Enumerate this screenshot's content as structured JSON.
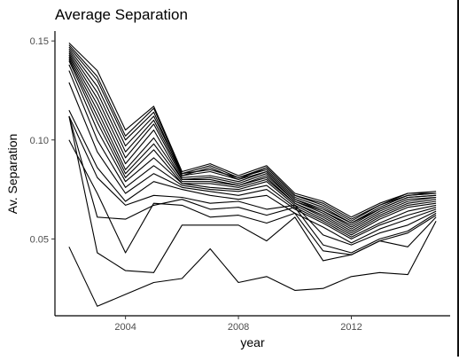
{
  "chart_data": {
    "type": "line",
    "title": "Average Separation",
    "xlabel": "year",
    "ylabel": "Av. Separation",
    "xlim": [
      2001.5,
      2015.5
    ],
    "ylim": [
      0.0112,
      0.155
    ],
    "x_ticks": [
      2004,
      2008,
      2012
    ],
    "y_ticks": [
      0.05,
      0.1,
      0.15
    ],
    "x_tick_labels": [
      "2004",
      "2008",
      "2012"
    ],
    "y_tick_labels": [
      "0.05",
      "0.10",
      "0.15"
    ],
    "grid": false,
    "legend": "none",
    "line_color": "#000000",
    "x": [
      2002,
      2003,
      2004,
      2005,
      2006,
      2007,
      2008,
      2009,
      2010,
      2011,
      2012,
      2013,
      2014,
      2015
    ],
    "series": [
      {
        "values": [
          0.149,
          0.135,
          0.105,
          0.117,
          0.084,
          0.088,
          0.082,
          0.087,
          0.073,
          0.069,
          0.061,
          0.068,
          0.073,
          0.074
        ]
      },
      {
        "values": [
          0.148,
          0.132,
          0.102,
          0.116,
          0.083,
          0.087,
          0.081,
          0.086,
          0.072,
          0.068,
          0.06,
          0.067,
          0.073,
          0.073
        ]
      },
      {
        "values": [
          0.147,
          0.13,
          0.1,
          0.114,
          0.082,
          0.086,
          0.08,
          0.086,
          0.072,
          0.067,
          0.059,
          0.067,
          0.072,
          0.073
        ]
      },
      {
        "values": [
          0.146,
          0.127,
          0.097,
          0.112,
          0.083,
          0.085,
          0.081,
          0.085,
          0.071,
          0.066,
          0.058,
          0.066,
          0.072,
          0.073
        ]
      },
      {
        "values": [
          0.145,
          0.124,
          0.094,
          0.11,
          0.082,
          0.084,
          0.08,
          0.084,
          0.07,
          0.065,
          0.058,
          0.065,
          0.071,
          0.072
        ]
      },
      {
        "values": [
          0.144,
          0.121,
          0.091,
          0.108,
          0.081,
          0.082,
          0.079,
          0.084,
          0.07,
          0.064,
          0.057,
          0.065,
          0.071,
          0.072
        ]
      },
      {
        "values": [
          0.143,
          0.118,
          0.088,
          0.105,
          0.08,
          0.081,
          0.078,
          0.083,
          0.069,
          0.064,
          0.056,
          0.064,
          0.07,
          0.071
        ]
      },
      {
        "values": [
          0.142,
          0.115,
          0.085,
          0.101,
          0.08,
          0.08,
          0.077,
          0.082,
          0.069,
          0.063,
          0.055,
          0.063,
          0.069,
          0.071
        ]
      },
      {
        "values": [
          0.141,
          0.112,
          0.083,
          0.098,
          0.079,
          0.079,
          0.077,
          0.081,
          0.068,
          0.062,
          0.054,
          0.062,
          0.068,
          0.07
        ]
      },
      {
        "values": [
          0.14,
          0.109,
          0.081,
          0.095,
          0.078,
          0.078,
          0.076,
          0.08,
          0.068,
          0.061,
          0.053,
          0.061,
          0.067,
          0.069
        ]
      },
      {
        "values": [
          0.138,
          0.105,
          0.079,
          0.091,
          0.078,
          0.076,
          0.075,
          0.079,
          0.067,
          0.06,
          0.052,
          0.06,
          0.066,
          0.068
        ]
      },
      {
        "values": [
          0.135,
          0.1,
          0.076,
          0.087,
          0.077,
          0.075,
          0.074,
          0.077,
          0.066,
          0.059,
          0.051,
          0.058,
          0.064,
          0.067
        ]
      },
      {
        "values": [
          0.129,
          0.094,
          0.073,
          0.083,
          0.076,
          0.074,
          0.072,
          0.075,
          0.065,
          0.058,
          0.05,
          0.057,
          0.062,
          0.066
        ]
      },
      {
        "values": [
          0.115,
          0.086,
          0.069,
          0.079,
          0.075,
          0.072,
          0.07,
          0.072,
          0.063,
          0.056,
          0.048,
          0.055,
          0.06,
          0.065
        ]
      },
      {
        "values": [
          0.112,
          0.081,
          0.067,
          0.072,
          0.071,
          0.068,
          0.069,
          0.065,
          0.067,
          0.052,
          0.047,
          0.053,
          0.057,
          0.064
        ]
      },
      {
        "values": [
          0.112,
          0.061,
          0.06,
          0.067,
          0.07,
          0.065,
          0.066,
          0.062,
          0.066,
          0.047,
          0.043,
          0.05,
          0.054,
          0.063
        ]
      },
      {
        "values": [
          0.1,
          0.073,
          0.043,
          0.068,
          0.067,
          0.061,
          0.062,
          0.058,
          0.063,
          0.044,
          0.042,
          0.049,
          0.053,
          0.062
        ]
      },
      {
        "values": [
          0.112,
          0.043,
          0.034,
          0.033,
          0.057,
          0.057,
          0.057,
          0.049,
          0.061,
          0.039,
          0.042,
          0.049,
          0.046,
          0.061
        ]
      },
      {
        "values": [
          0.046,
          0.016,
          0.022,
          0.028,
          0.03,
          0.045,
          0.028,
          0.031,
          0.024,
          0.025,
          0.031,
          0.033,
          0.032,
          0.059
        ]
      }
    ]
  }
}
